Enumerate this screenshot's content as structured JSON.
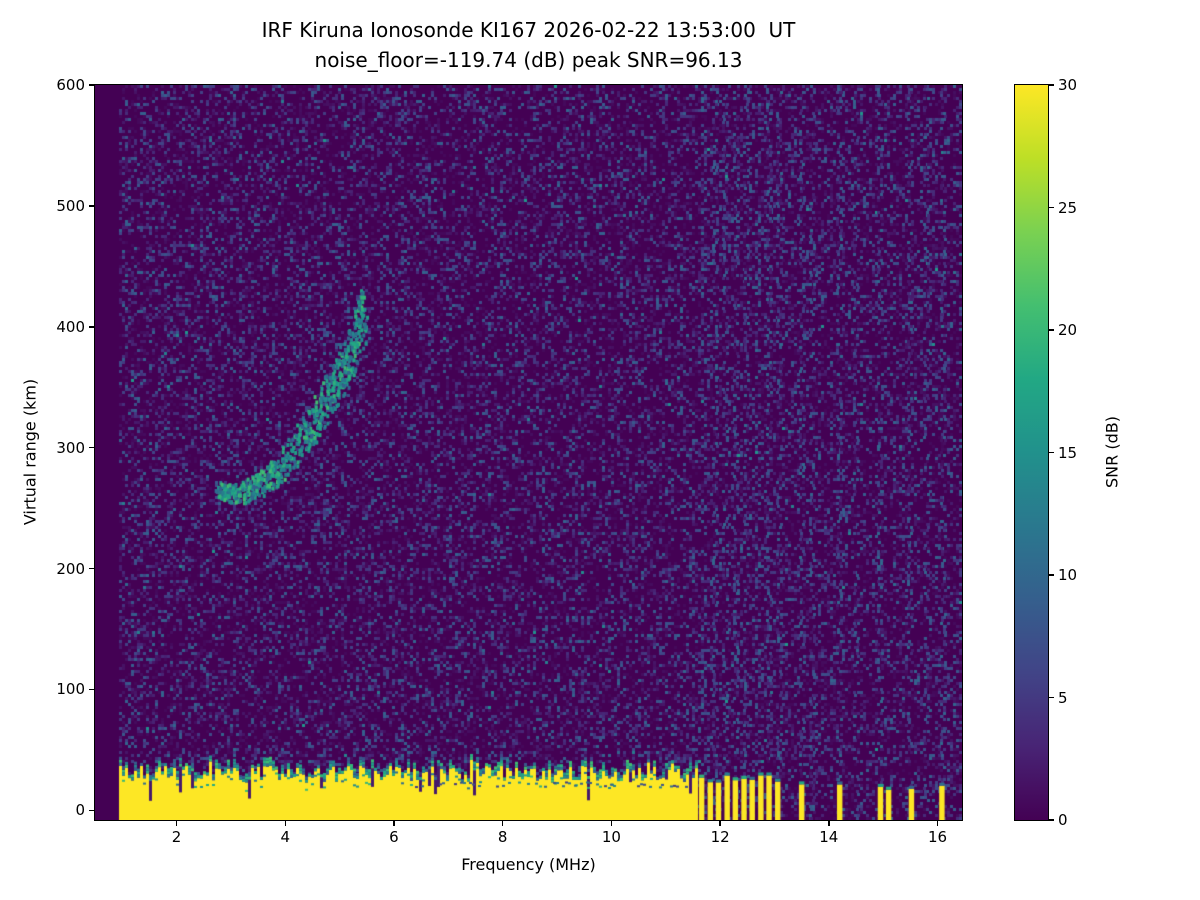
{
  "chart_data": {
    "type": "heatmap",
    "title": "IRF Kiruna Ionosonde KI167 2026-02-22 13:53:00  UT",
    "subtitle": "noise_floor=-119.74 (dB) peak SNR=96.13",
    "stats": {
      "noise_floor_db": -119.74,
      "peak_snr_db": 96.13,
      "station": "KI167",
      "timestamp": "2026-02-22 13:53:00 UT"
    },
    "xlabel": "Frequency (MHz)",
    "ylabel": "Virtual range (km)",
    "xlim": [
      0.5,
      16.45
    ],
    "ylim": [
      -8,
      600
    ],
    "xticks": [
      2,
      4,
      6,
      8,
      10,
      12,
      14,
      16
    ],
    "yticks": [
      0,
      100,
      200,
      300,
      400,
      500,
      600
    ],
    "colormap": "viridis",
    "colorbar": {
      "label": "SNR (dB)",
      "min": 0,
      "max": 30,
      "ticks": [
        0,
        5,
        10,
        15,
        20,
        25,
        30
      ]
    },
    "data_freq_start": 0.95,
    "background": {
      "noise_snr_max": 9,
      "speckle_density": 0.38
    },
    "ground_clutter": {
      "freq_range": [
        0.95,
        11.58
      ],
      "top_km_mean": 30,
      "top_km_jitter": 7,
      "snr": 30,
      "fringe_snr_range": [
        8,
        21
      ]
    },
    "rfi_noise_columns": [
      11.7,
      11.9,
      12.1,
      12.3,
      12.5,
      12.7,
      12.9,
      13.1,
      13.5,
      13.7,
      14.2,
      14.5,
      14.95,
      15.5,
      15.8,
      16.1
    ],
    "rfi_bars": {
      "freqs": [
        11.66,
        11.82,
        11.97,
        12.13,
        12.28,
        12.44,
        12.59,
        12.75,
        12.9,
        13.06,
        13.5,
        14.2,
        14.95,
        15.1,
        15.52,
        16.08
      ],
      "width_mhz": 0.1,
      "top_km_dense": 26,
      "top_km_sparse": 20
    },
    "echo_trace": {
      "count": 650,
      "snr_range": [
        9,
        21
      ],
      "points": [
        [
          2.75,
          268
        ],
        [
          2.95,
          263
        ],
        [
          3.15,
          264
        ],
        [
          3.35,
          267
        ],
        [
          3.55,
          272
        ],
        [
          3.75,
          279
        ],
        [
          3.95,
          288
        ],
        [
          4.15,
          299
        ],
        [
          4.35,
          312
        ],
        [
          4.55,
          326
        ],
        [
          4.72,
          340
        ],
        [
          4.88,
          352
        ],
        [
          5.02,
          363
        ],
        [
          5.15,
          376
        ],
        [
          5.26,
          390
        ],
        [
          5.35,
          403
        ],
        [
          5.42,
          414
        ]
      ]
    }
  }
}
